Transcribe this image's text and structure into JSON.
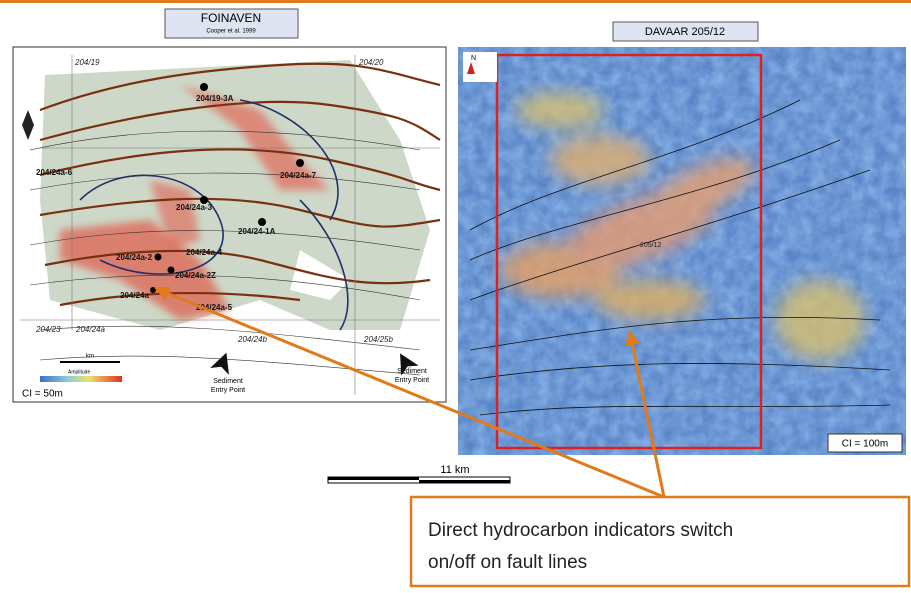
{
  "header": {
    "foinaven_title": "FOINAVEN",
    "foinaven_citation": "Cooper et al. 1999",
    "davaar_title": "DAVAAR 205/12"
  },
  "left_map": {
    "blocks": [
      "204/19",
      "204/20",
      "204/23",
      "204/24a",
      "204/24b",
      "204/25b"
    ],
    "wells": [
      "204/19-3A",
      "204/24a-7",
      "204/24a-6",
      "204/24a-3",
      "204/24-1A",
      "204/24a-2",
      "204/24a-4",
      "204/24a-2Z",
      "204/24a",
      "204/24a-5"
    ],
    "entry_points": [
      [
        "Sediment",
        "Entry Point"
      ],
      [
        "Sediment",
        "Entry Point"
      ]
    ],
    "scale_unit": "km",
    "legend_label": "Amplitude",
    "contour_interval": "CI = 50m"
  },
  "right_map": {
    "north": "N",
    "block_label": "205/12",
    "contour_interval": "CI = 100m"
  },
  "scale_bar": "11 km",
  "callout": [
    "Direct hydrocarbon indicators switch",
    "on/off on fault lines"
  ]
}
